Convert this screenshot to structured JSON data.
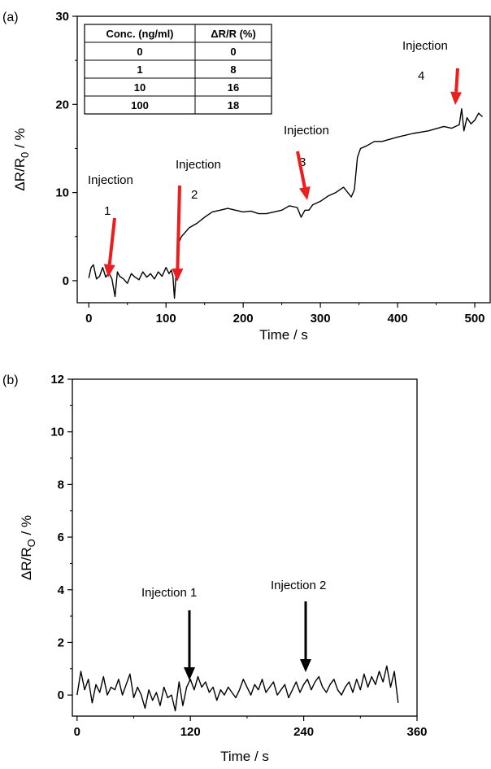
{
  "chart_data": [
    {
      "panel": "(a)",
      "type": "line",
      "title": "",
      "xlabel": "Time / s",
      "ylabel_main": "ΔR/R",
      "ylabel_sub": "0",
      "ylabel_tail": " / %",
      "xlim": [
        -15,
        520
      ],
      "ylim": [
        -2.5,
        30
      ],
      "xticks": [
        0,
        100,
        200,
        300,
        400,
        500
      ],
      "yticks": [
        0,
        10,
        20,
        30
      ],
      "grid": false,
      "series": [
        {
          "color": "#000000",
          "x": [
            0,
            3,
            6,
            10,
            14,
            18,
            22,
            26,
            30,
            34,
            37,
            40,
            45,
            50,
            55,
            60,
            65,
            70,
            75,
            80,
            85,
            90,
            95,
            100,
            104,
            107,
            109,
            111,
            113,
            116,
            120,
            130,
            140,
            150,
            160,
            170,
            180,
            190,
            200,
            210,
            220,
            230,
            240,
            250,
            260,
            270,
            275,
            280,
            285,
            290,
            300,
            310,
            320,
            330,
            340,
            344,
            348,
            352,
            360,
            370,
            380,
            400,
            420,
            440,
            460,
            470,
            480,
            483,
            486,
            490,
            495,
            500,
            505,
            510
          ],
          "y": [
            0.3,
            1.5,
            1.8,
            0.2,
            0.5,
            1.5,
            0.4,
            0.9,
            0.2,
            -1.8,
            1.0,
            0.5,
            0.2,
            -0.3,
            0.8,
            0.4,
            0.1,
            1.0,
            0.4,
            0.8,
            0.2,
            1.0,
            0.5,
            1.5,
            0.8,
            1.2,
            0.5,
            -2.0,
            0.6,
            4.2,
            5.0,
            6.0,
            6.5,
            7.2,
            7.8,
            8.0,
            8.2,
            8.0,
            7.8,
            7.9,
            7.6,
            7.6,
            7.8,
            8.0,
            8.5,
            8.3,
            7.2,
            8.0,
            8.0,
            8.6,
            9.0,
            9.6,
            10.0,
            10.6,
            9.5,
            10.3,
            14.0,
            15.0,
            15.3,
            15.8,
            15.8,
            16.3,
            16.7,
            17.0,
            17.5,
            17.3,
            17.7,
            19.5,
            17.0,
            18.5,
            17.8,
            18.2,
            19.0,
            18.6
          ]
        }
      ],
      "annotations": [
        {
          "label": "Injection",
          "number": "1",
          "x": 10,
          "arrow_color": "#ee1c1c"
        },
        {
          "label": "Injection",
          "number": "2",
          "x": 105,
          "arrow_color": "#ee1c1c"
        },
        {
          "label": "Injection",
          "number": "3",
          "x": 280,
          "arrow_color": "#ee1c1c"
        },
        {
          "label": "Injection",
          "number": "4",
          "x": 483,
          "arrow_color": "#ee1c1c"
        }
      ],
      "table": {
        "headers": [
          "Conc. (ng/ml)",
          "ΔR/R (%)"
        ],
        "rows": [
          [
            "0",
            "0"
          ],
          [
            "1",
            "8"
          ],
          [
            "10",
            "16"
          ],
          [
            "100",
            "18"
          ]
        ]
      }
    },
    {
      "panel": "(b)",
      "type": "line",
      "title": "",
      "xlabel": "Time / s",
      "ylabel_main": "ΔR/R",
      "ylabel_sub": "O",
      "ylabel_tail": " / %",
      "xlim": [
        -5,
        360
      ],
      "ylim": [
        -0.8,
        12
      ],
      "xticks": [
        0,
        120,
        240,
        360
      ],
      "yticks": [
        0,
        2,
        4,
        6,
        8,
        10,
        12
      ],
      "grid": false,
      "series": [
        {
          "color": "#000000",
          "x": [
            0,
            4,
            8,
            12,
            16,
            20,
            24,
            28,
            32,
            36,
            40,
            44,
            48,
            52,
            56,
            60,
            64,
            68,
            72,
            76,
            80,
            84,
            88,
            92,
            96,
            100,
            104,
            108,
            112,
            116,
            120,
            124,
            128,
            132,
            136,
            140,
            144,
            148,
            152,
            156,
            160,
            164,
            168,
            172,
            176,
            180,
            184,
            188,
            192,
            196,
            200,
            204,
            208,
            212,
            216,
            220,
            224,
            228,
            232,
            236,
            240,
            244,
            248,
            252,
            256,
            260,
            264,
            268,
            272,
            276,
            280,
            284,
            288,
            292,
            296,
            300,
            304,
            308,
            312,
            316,
            320,
            324,
            328,
            332,
            336,
            340
          ],
          "y": [
            0.0,
            0.9,
            0.2,
            0.6,
            -0.3,
            0.4,
            0.1,
            0.7,
            0.0,
            0.3,
            0.2,
            0.6,
            0.0,
            0.4,
            0.8,
            -0.1,
            0.3,
            0.0,
            -0.5,
            0.2,
            -0.2,
            0.1,
            -0.4,
            0.3,
            -0.1,
            0.0,
            -0.6,
            0.5,
            -0.4,
            0.3,
            0.6,
            0.2,
            0.7,
            0.3,
            0.5,
            0.1,
            0.3,
            -0.2,
            0.2,
            0.0,
            0.3,
            0.1,
            -0.1,
            0.2,
            0.6,
            0.3,
            0.0,
            0.4,
            0.2,
            0.6,
            0.1,
            0.3,
            0.5,
            0.0,
            0.2,
            0.4,
            -0.1,
            0.2,
            0.5,
            0.1,
            0.4,
            0.6,
            0.2,
            0.5,
            0.7,
            0.3,
            0.1,
            0.4,
            0.6,
            0.2,
            0.0,
            0.3,
            0.5,
            0.1,
            0.6,
            0.2,
            0.8,
            0.3,
            0.7,
            0.4,
            0.9,
            0.5,
            1.1,
            0.3,
            0.9,
            -0.3
          ]
        }
      ],
      "annotations": [
        {
          "label": "Injection 1",
          "x": 110,
          "arrow_color": "#000000"
        },
        {
          "label": "Injection 2",
          "x": 237,
          "arrow_color": "#000000"
        }
      ]
    }
  ]
}
